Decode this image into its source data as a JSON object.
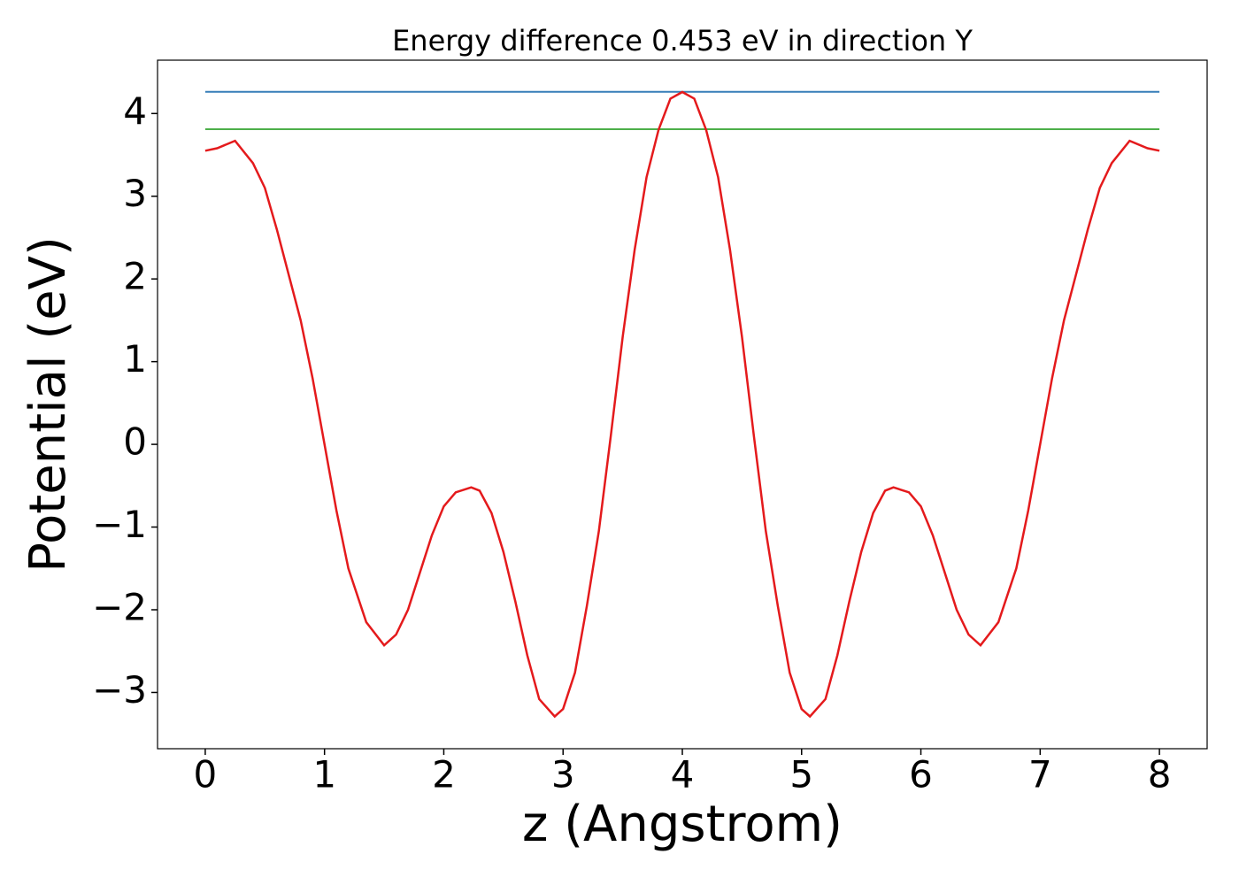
{
  "chart_data": {
    "type": "line",
    "title": "Energy difference 0.453 eV in direction Y",
    "xlabel": "z (Angstrom)",
    "ylabel": "Potential (eV)",
    "xlim": [
      -0.4,
      8.4
    ],
    "ylim": [
      -3.68,
      4.645
    ],
    "xticks": [
      0,
      1,
      2,
      3,
      4,
      5,
      6,
      7,
      8
    ],
    "yticks": [
      {
        "value": -3,
        "label": "−3"
      },
      {
        "value": -2,
        "label": "−2"
      },
      {
        "value": -1,
        "label": "−1"
      },
      0,
      1,
      2,
      3,
      4
    ],
    "series": [
      {
        "color": "#377eb8",
        "x": [
          0,
          8
        ],
        "values": [
          4.263,
          4.263
        ]
      },
      {
        "color": "#4daf4a",
        "x": [
          0,
          8
        ],
        "values": [
          3.81,
          3.81
        ]
      },
      {
        "color": "#e41a1c",
        "x": [
          0,
          0.1,
          0.25,
          0.4,
          0.5,
          0.6,
          0.7,
          0.8,
          0.9,
          1.0,
          1.1,
          1.2,
          1.35,
          1.5,
          1.6,
          1.7,
          1.8,
          1.9,
          2.0,
          2.1,
          2.23,
          2.3,
          2.4,
          2.5,
          2.6,
          2.7,
          2.8,
          2.93,
          3.0,
          3.1,
          3.2,
          3.3,
          3.4,
          3.5,
          3.6,
          3.7,
          3.8,
          3.9,
          4.0,
          4.1,
          4.2,
          4.3,
          4.4,
          4.5,
          4.6,
          4.7,
          4.8,
          4.9,
          5.0,
          5.07,
          5.2,
          5.3,
          5.4,
          5.5,
          5.6,
          5.7,
          5.77,
          5.9,
          6.0,
          6.1,
          6.2,
          6.3,
          6.4,
          6.5,
          6.65,
          6.8,
          6.9,
          7.0,
          7.1,
          7.2,
          7.3,
          7.4,
          7.5,
          7.6,
          7.75,
          7.9,
          8.0
        ],
        "values": [
          3.55,
          3.58,
          3.67,
          3.4,
          3.1,
          2.6,
          2.05,
          1.5,
          0.8,
          0.0,
          -0.8,
          -1.5,
          -2.15,
          -2.43,
          -2.3,
          -2.0,
          -1.55,
          -1.1,
          -0.75,
          -0.58,
          -0.52,
          -0.56,
          -0.83,
          -1.3,
          -1.9,
          -2.55,
          -3.08,
          -3.29,
          -3.2,
          -2.76,
          -1.95,
          -1.05,
          0.1,
          1.3,
          2.35,
          3.23,
          3.8,
          4.18,
          4.26,
          4.18,
          3.8,
          3.23,
          2.35,
          1.3,
          0.1,
          -1.05,
          -1.95,
          -2.76,
          -3.2,
          -3.29,
          -3.08,
          -2.55,
          -1.9,
          -1.3,
          -0.83,
          -0.56,
          -0.52,
          -0.58,
          -0.75,
          -1.1,
          -1.55,
          -2.0,
          -2.3,
          -2.43,
          -2.15,
          -1.5,
          -0.8,
          0.0,
          0.8,
          1.5,
          2.05,
          2.6,
          3.1,
          3.4,
          3.67,
          3.58,
          3.55
        ]
      }
    ]
  }
}
